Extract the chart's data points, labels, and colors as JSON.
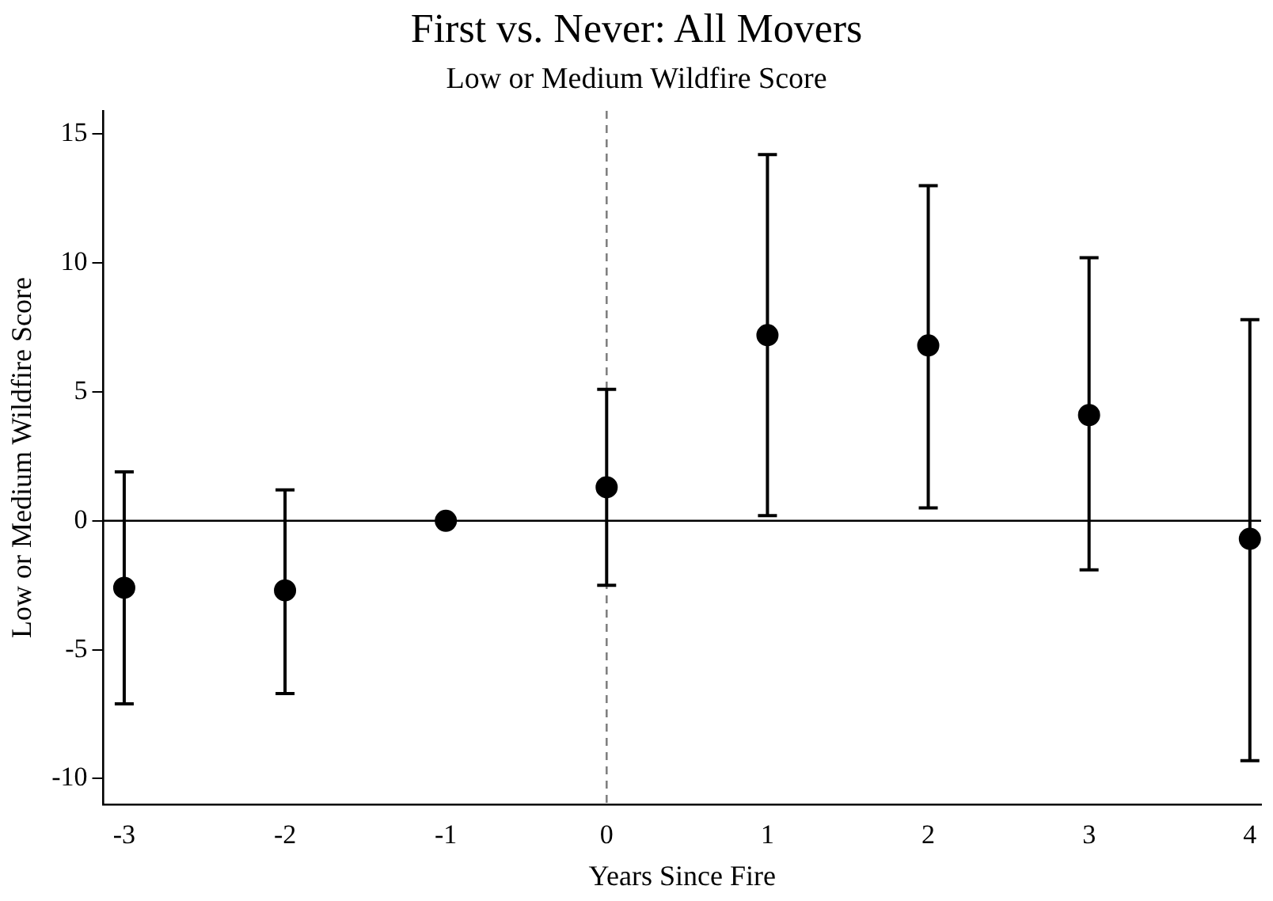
{
  "chart_data": {
    "type": "scatter",
    "title": "First vs. Never: All Movers",
    "subtitle": "Low or Medium Wildfire Score",
    "xlabel": "Years Since Fire",
    "ylabel": "Low or Medium Wildfire Score",
    "x": [
      -3,
      -2,
      -1,
      0,
      1,
      2,
      3,
      4
    ],
    "series": [
      {
        "color": "#000000",
        "values": [
          -2.6,
          -2.7,
          0,
          1.3,
          7.2,
          6.8,
          4.1,
          -0.7
        ],
        "errors": [
          [
            -7.1,
            1.9
          ],
          [
            -6.7,
            1.2
          ],
          null,
          [
            -2.5,
            5.1
          ],
          [
            0.2,
            14.2
          ],
          [
            0.5,
            13
          ],
          [
            -1.9,
            10.2
          ],
          [
            -9.3,
            7.8
          ]
        ]
      }
    ],
    "marker": "circle",
    "grid": false,
    "legend": false,
    "xlim": [
      -3.13,
      4.07
    ],
    "xticks": [
      -3,
      -2,
      -1,
      0,
      1,
      2,
      3,
      4
    ],
    "ylim": [
      -11,
      15.9
    ],
    "yticks": [
      -10,
      -5,
      0,
      5,
      10,
      15
    ],
    "ref_lines": [
      {
        "axis": "y",
        "value": 0,
        "color": "#000000",
        "line_style": "solid"
      },
      {
        "axis": "x",
        "value": 0,
        "color": "#808080",
        "line_style": "dashed"
      }
    ]
  }
}
